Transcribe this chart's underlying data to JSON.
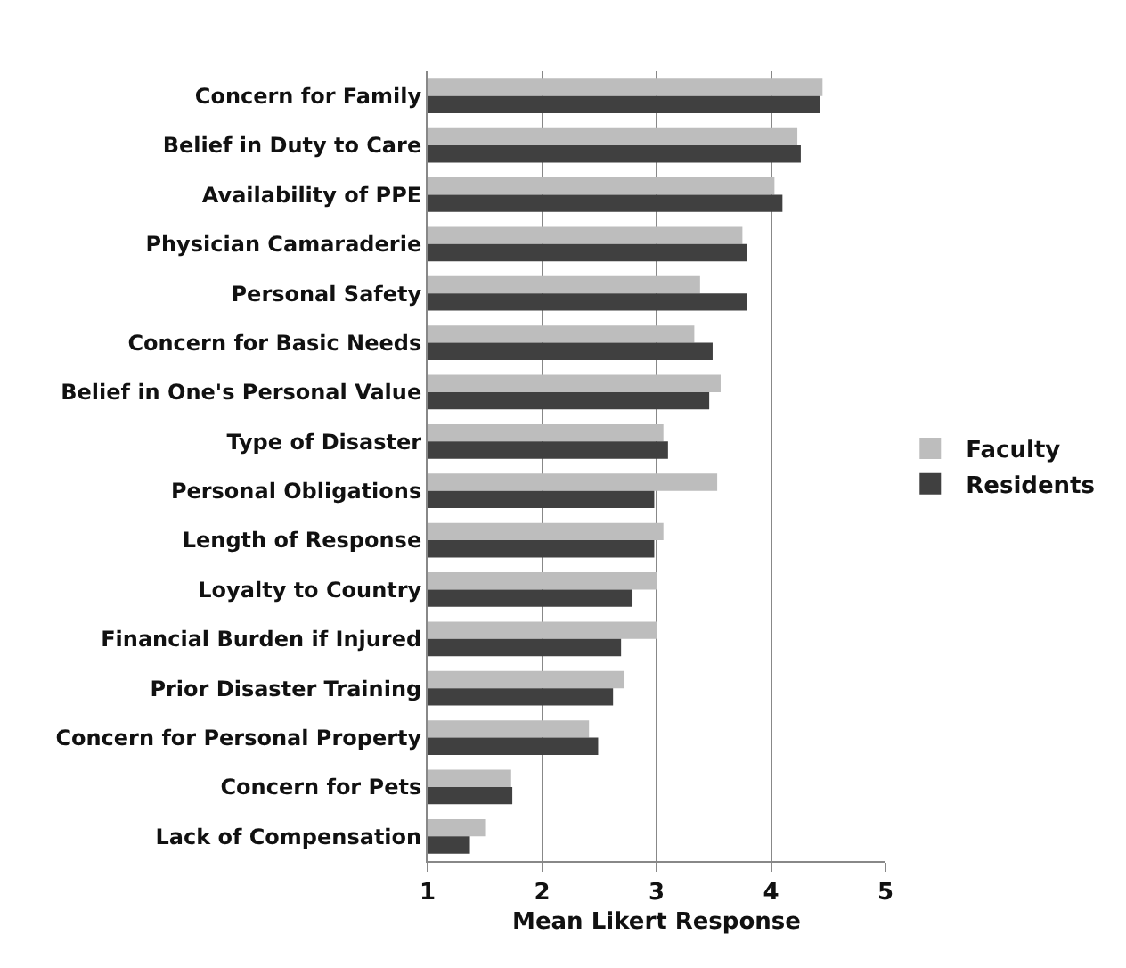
{
  "chart_data": {
    "type": "bar",
    "orientation": "horizontal",
    "xlabel": "Mean Likert Response",
    "categories": [
      "Concern for Family",
      "Belief in Duty to Care",
      "Availability of PPE",
      "Physician Camaraderie",
      "Personal Safety",
      "Concern for Basic Needs",
      "Belief in One's Personal Value",
      "Type of Disaster",
      "Personal Obligations",
      "Length of Response",
      "Loyalty to Country",
      "Financial Burden if Injured",
      "Prior Disaster Training",
      "Concern for Personal Property",
      "Concern for Pets",
      "Lack of Compensation"
    ],
    "series": [
      {
        "name": "Faculty",
        "color": "#bdbdbd",
        "values": [
          4.45,
          4.23,
          4.03,
          3.75,
          3.38,
          3.33,
          3.56,
          3.06,
          3.53,
          3.06,
          3.0,
          3.0,
          2.72,
          2.41,
          1.73,
          1.51
        ]
      },
      {
        "name": "Residents",
        "color": "#404040",
        "values": [
          4.43,
          4.26,
          4.1,
          3.79,
          3.79,
          3.49,
          3.46,
          3.1,
          2.98,
          2.98,
          2.79,
          2.69,
          2.62,
          2.49,
          1.74,
          1.37
        ]
      }
    ],
    "xlim": [
      1,
      5
    ],
    "xticks": [
      1,
      2,
      3,
      4,
      5
    ],
    "grid": "x",
    "legend": "right"
  }
}
